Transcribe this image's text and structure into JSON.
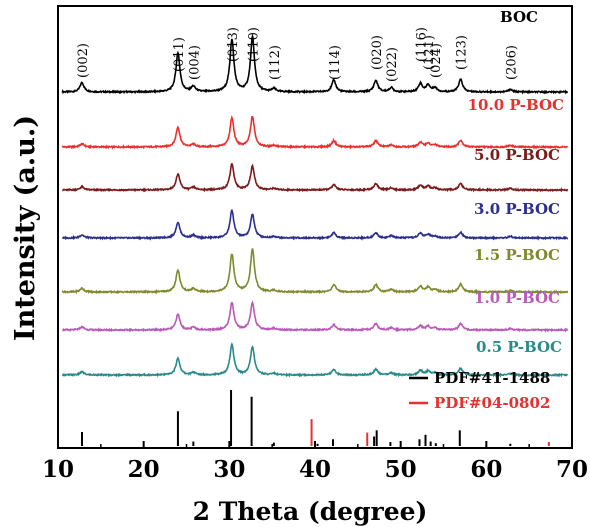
{
  "chart_data": {
    "type": "line",
    "xlabel": "2 Theta (degree)",
    "ylabel": "Intensity (a.u.)",
    "xlim": [
      10,
      70
    ],
    "x_ticks": [
      10,
      20,
      30,
      40,
      50,
      60,
      70
    ],
    "x_tick_labels": [
      "10",
      "20",
      "30",
      "40",
      "50",
      "60",
      "70"
    ],
    "peaks_2theta": [
      12.8,
      24.0,
      25.8,
      30.3,
      32.7,
      35.2,
      42.2,
      47.1,
      48.9,
      52.3,
      53.2,
      54.0,
      57.0,
      62.8
    ],
    "peak_labels": [
      {
        "hkl": "(002)",
        "x": 12.8
      },
      {
        "hkl": "(011)",
        "x": 24.0
      },
      {
        "hkl": "(004)",
        "x": 25.8
      },
      {
        "hkl": "(013)",
        "x": 30.3
      },
      {
        "hkl": "(110)",
        "x": 32.7
      },
      {
        "hkl": "(112)",
        "x": 35.2
      },
      {
        "hkl": "(114)",
        "x": 42.2
      },
      {
        "hkl": "(020)",
        "x": 47.1
      },
      {
        "hkl": "(022)",
        "x": 48.9
      },
      {
        "hkl": "(116)",
        "x": 52.3
      },
      {
        "hkl": "(121)",
        "x": 53.2
      },
      {
        "hkl": "(024)",
        "x": 54.0
      },
      {
        "hkl": "(123)",
        "x": 57.0
      },
      {
        "hkl": "(206)",
        "x": 62.8
      }
    ],
    "series": [
      {
        "name": "BOC",
        "color": "#000000",
        "peak_heights": [
          0.18,
          0.75,
          0.1,
          1.0,
          1.05,
          0.06,
          0.23,
          0.22,
          0.08,
          0.16,
          0.13,
          0.08,
          0.24,
          0.05
        ]
      },
      {
        "name": "10.0 P-BOC",
        "color": "#e8302f",
        "peak_heights": [
          0.06,
          0.38,
          0.05,
          0.55,
          0.58,
          0.03,
          0.12,
          0.12,
          0.04,
          0.09,
          0.07,
          0.04,
          0.13,
          0.03
        ]
      },
      {
        "name": "5.0 P-BOC",
        "color": "#7a1a1a",
        "peak_heights": [
          0.06,
          0.3,
          0.05,
          0.5,
          0.45,
          0.03,
          0.1,
          0.12,
          0.04,
          0.09,
          0.07,
          0.04,
          0.12,
          0.03
        ]
      },
      {
        "name": "3.0 P-BOC",
        "color": "#2b2f8c",
        "peak_heights": [
          0.06,
          0.3,
          0.05,
          0.52,
          0.45,
          0.03,
          0.1,
          0.1,
          0.04,
          0.09,
          0.07,
          0.04,
          0.11,
          0.03
        ]
      },
      {
        "name": "1.5 P-BOC",
        "color": "#7f8a2e",
        "peak_heights": [
          0.07,
          0.42,
          0.06,
          0.72,
          0.82,
          0.03,
          0.14,
          0.14,
          0.05,
          0.11,
          0.09,
          0.05,
          0.15,
          0.03
        ]
      },
      {
        "name": "1.0 P-BOC",
        "color": "#b85ab8",
        "peak_heights": [
          0.06,
          0.3,
          0.05,
          0.52,
          0.52,
          0.03,
          0.1,
          0.12,
          0.04,
          0.08,
          0.07,
          0.04,
          0.12,
          0.03
        ]
      },
      {
        "name": "0.5 P-BOC",
        "color": "#2a8a8a",
        "peak_heights": [
          0.06,
          0.32,
          0.05,
          0.58,
          0.54,
          0.03,
          0.1,
          0.11,
          0.04,
          0.09,
          0.07,
          0.04,
          0.13,
          0.03
        ]
      }
    ],
    "reference_patterns": [
      {
        "name": "PDF#41-1488",
        "color": "#000000",
        "x": [
          12.8,
          24.0,
          25.8,
          30.2,
          32.6,
          35.2,
          40.3,
          42.1,
          46.9,
          47.2,
          48.8,
          52.2,
          52.9,
          53.5,
          54.1,
          56.9,
          62.8
        ],
        "y": [
          0.25,
          0.62,
          0.08,
          1.0,
          0.88,
          0.06,
          0.04,
          0.12,
          0.17,
          0.28,
          0.07,
          0.12,
          0.2,
          0.08,
          0.05,
          0.28,
          0.04
        ]
      },
      {
        "name": "PDF#04-0802",
        "color": "#e8302f",
        "x": [
          39.6,
          46.1,
          67.3
        ],
        "y": [
          0.48,
          0.24,
          0.07
        ]
      }
    ],
    "legend": "bottom-right",
    "grid": false
  }
}
